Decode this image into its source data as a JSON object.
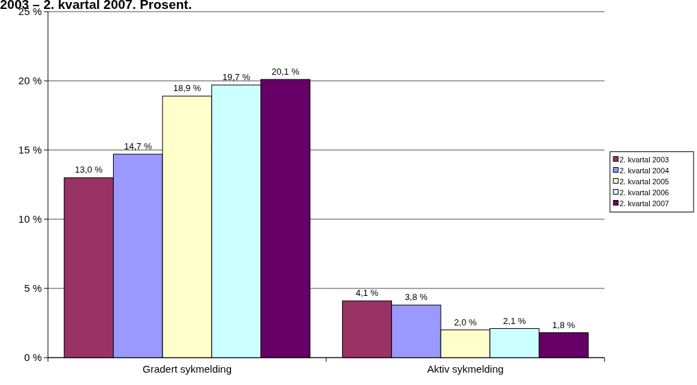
{
  "chart_data": {
    "type": "bar",
    "title": "2003 – 2. kvartal 2007. Prosent.",
    "categories": [
      "Gradert sykmelding",
      "Aktiv sykmelding"
    ],
    "series": [
      {
        "name": "2. kvartal 2003",
        "color": "#993366",
        "values": [
          13.0,
          4.1
        ],
        "value_labels": [
          "13,0 %",
          "4,1 %"
        ]
      },
      {
        "name": "2. kvartal 2004",
        "color": "#9999ff",
        "values": [
          14.7,
          3.8
        ],
        "value_labels": [
          "14,7 %",
          "3,8 %"
        ]
      },
      {
        "name": "2. kvartal 2005",
        "color": "#ffffcc",
        "values": [
          18.9,
          2.0
        ],
        "value_labels": [
          "18,9 %",
          "2,0 %"
        ]
      },
      {
        "name": "2. kvartal 2006",
        "color": "#ccffff",
        "values": [
          19.7,
          2.1
        ],
        "value_labels": [
          "19,7 %",
          "2,1 %"
        ]
      },
      {
        "name": "2. kvartal 2007",
        "color": "#660066",
        "values": [
          20.1,
          1.8
        ],
        "value_labels": [
          "20,1 %",
          "1,8 %"
        ]
      }
    ],
    "ylim": [
      0,
      25
    ],
    "yticks": [
      {
        "value": 0,
        "label": "0 %"
      },
      {
        "value": 5,
        "label": "5 %"
      },
      {
        "value": 10,
        "label": "10 %"
      },
      {
        "value": 15,
        "label": "15 %"
      },
      {
        "value": 20,
        "label": "20 %"
      },
      {
        "value": 25,
        "label": "25 %"
      }
    ],
    "grid": "y",
    "legend": "right"
  }
}
